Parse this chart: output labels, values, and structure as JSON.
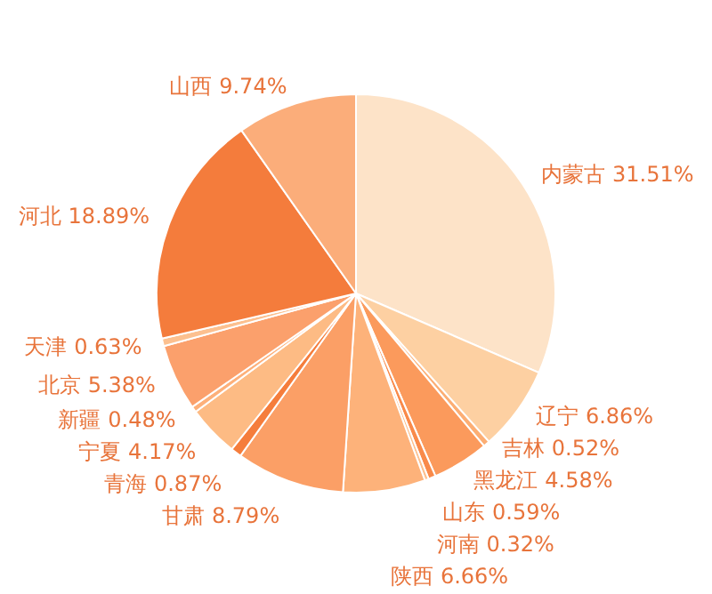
{
  "chart_data": {
    "type": "pie",
    "categories": [
      "内蒙古",
      "辽宁",
      "吉林",
      "黑龙江",
      "山东",
      "河南",
      "陕西",
      "甘肃",
      "青海",
      "宁夏",
      "新疆",
      "北京",
      "天津",
      "河北",
      "山西"
    ],
    "values": [
      31.51,
      6.86,
      0.52,
      4.58,
      0.59,
      0.32,
      6.66,
      8.79,
      0.87,
      4.17,
      0.48,
      5.38,
      0.63,
      18.89,
      9.74
    ],
    "value_labels": [
      "31.51%",
      "6.86%",
      "0.52%",
      "4.58%",
      "0.59%",
      "0.32%",
      "6.66%",
      "8.79%",
      "0.87%",
      "4.17%",
      "0.48%",
      "5.38%",
      "0.63%",
      "18.89%",
      "9.74%"
    ],
    "colors": [
      "#fde3c8",
      "#fdd0a2",
      "#fcae74",
      "#fb9a5c",
      "#f98a4a",
      "#fdc08e",
      "#fdb27a",
      "#fb9f66",
      "#f57d3c",
      "#fdbb84",
      "#fdb07a",
      "#fba06c",
      "#fcc08f",
      "#f47c3c",
      "#fbad7a"
    ]
  }
}
